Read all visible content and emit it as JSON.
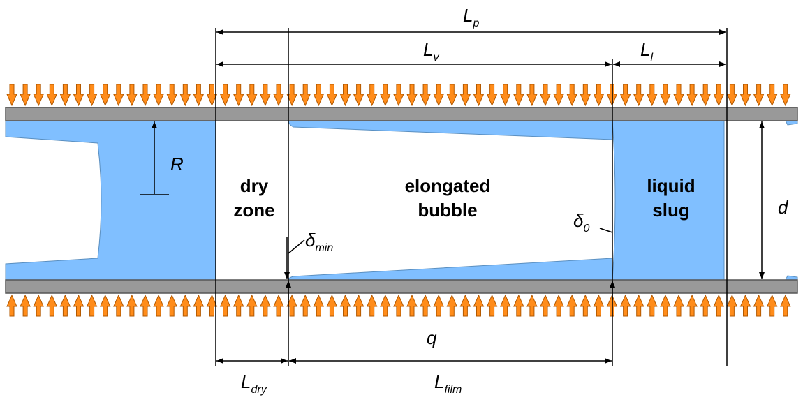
{
  "colors": {
    "liquid": "#80BFFF",
    "wall": "#999999",
    "wall_border": "#555555",
    "heat_arrow_fill": "#FF8C1A",
    "heat_arrow_stroke": "#B35900",
    "line": "#000000"
  },
  "labels": {
    "Lp_main": "L",
    "Lp_sub": "p",
    "Lv_main": "L",
    "Lv_sub": "v",
    "Ll_main": "L",
    "Ll_sub": "l",
    "R": "R",
    "d": "d",
    "q": "q",
    "delta_min_main": "δ",
    "delta_min_sub": "min",
    "delta0_main": "δ",
    "delta0_sub": "0",
    "Ldry_main": "L",
    "Ldry_sub": "dry",
    "Lfilm_main": "L",
    "Lfilm_sub": "film"
  },
  "zones": {
    "dry_line1": "dry",
    "dry_line2": "zone",
    "bubble_line1": "elongated",
    "bubble_line2": "bubble",
    "slug_line1": "liquid",
    "slug_line2": "slug"
  },
  "icons": {
    "heat_flux_top": "down-arrow-icon",
    "heat_flux_bottom": "up-arrow-icon"
  }
}
